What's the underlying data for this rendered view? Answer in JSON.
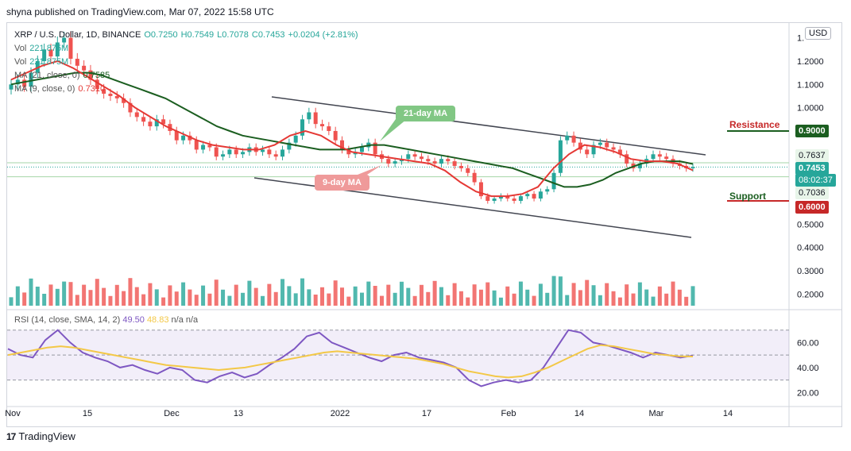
{
  "publisher": "shyna published on TradingView.com, Mar 07, 2022 15:58 UTC",
  "legend": {
    "symbol": "XRP / U.S. Dollar, 1D, BINANCE",
    "open": "O0.7250",
    "high": "H0.7549",
    "low": "L0.7078",
    "close": "C0.7453",
    "change": "+0.0204 (+2.81%)",
    "vol_label": "Vol",
    "vol_value": "221.875M",
    "vol_value2": "221.875M",
    "ma21": "MA (21, close, 0)",
    "ma21_value": "0.7585",
    "ma9": "MA (9, close, 0)",
    "ma9_value": "0.7310"
  },
  "currency_button": "USD",
  "price_axis": {
    "ticks": [
      "1.3000",
      "1.2000",
      "1.1000",
      "1.0000",
      "0.9000",
      "0.7637",
      "0.7453",
      "08:02:37",
      "0.7036",
      "0.6000",
      "0.5000",
      "0.4000",
      "0.3000",
      "0.2000"
    ],
    "top_tick": "1."
  },
  "labels": {
    "resistance": "Resistance",
    "resistance_value": "0.9000",
    "support": "Support",
    "support_value": "0.6000",
    "ma21_callout": "21-day MA",
    "ma9_callout": "9-day MA",
    "current_price": "0.7453",
    "countdown": "08:02:37",
    "high_marker": "0.7637",
    "low_marker": "0.7036"
  },
  "rsi": {
    "legend": "RSI (14, close, SMA, 14, 2)",
    "rsi_value": "49.50",
    "sma_value": "48.83",
    "extra": "n/a  n/a",
    "ticks": [
      "60.00",
      "40.00",
      "20.00"
    ]
  },
  "time_axis": [
    "Nov",
    "15",
    "Dec",
    "13",
    "2022",
    "17",
    "Feb",
    "14",
    "Mar",
    "14"
  ],
  "footer": {
    "brand": "TradingView",
    "logo_glyph": "17"
  },
  "colors": {
    "up": "#26a69a",
    "down": "#ef5350",
    "ma21": "#1b5e20",
    "ma9": "#e53935",
    "rsi": "#7e57c2",
    "rsi_sma": "#f3c847",
    "resistance": "#c62828",
    "support": "#c62828",
    "resistance_line": "#1b5e20"
  },
  "chart_data": {
    "type": "line",
    "candles_close": [
      1.1,
      1.12,
      1.09,
      1.15,
      1.2,
      1.25,
      1.22,
      1.28,
      1.3,
      1.21,
      1.18,
      1.16,
      1.12,
      1.08,
      1.06,
      1.05,
      1.04,
      1.02,
      0.98,
      0.96,
      0.94,
      0.92,
      0.95,
      0.93,
      0.9,
      0.86,
      0.88,
      0.86,
      0.82,
      0.84,
      0.83,
      0.79,
      0.8,
      0.82,
      0.8,
      0.81,
      0.83,
      0.81,
      0.82,
      0.8,
      0.79,
      0.82,
      0.85,
      0.88,
      0.95,
      0.98,
      0.93,
      0.92,
      0.9,
      0.86,
      0.82,
      0.8,
      0.81,
      0.83,
      0.85,
      0.8,
      0.78,
      0.76,
      0.77,
      0.78,
      0.8,
      0.79,
      0.78,
      0.77,
      0.76,
      0.78,
      0.77,
      0.75,
      0.74,
      0.72,
      0.68,
      0.62,
      0.6,
      0.61,
      0.62,
      0.61,
      0.6,
      0.62,
      0.63,
      0.61,
      0.64,
      0.65,
      0.72,
      0.86,
      0.88,
      0.85,
      0.82,
      0.8,
      0.84,
      0.85,
      0.83,
      0.82,
      0.8,
      0.76,
      0.74,
      0.76,
      0.78,
      0.8,
      0.79,
      0.78,
      0.76,
      0.75,
      0.74,
      0.7453
    ],
    "ma21": [
      1.1,
      1.11,
      1.12,
      1.13,
      1.14,
      1.15,
      1.15,
      1.14,
      1.12,
      1.1,
      1.08,
      1.06,
      1.04,
      1.01,
      0.98,
      0.95,
      0.92,
      0.9,
      0.88,
      0.87,
      0.86,
      0.85,
      0.84,
      0.83,
      0.82,
      0.82,
      0.82,
      0.83,
      0.84,
      0.84,
      0.83,
      0.82,
      0.81,
      0.8,
      0.79,
      0.78,
      0.77,
      0.76,
      0.75,
      0.74,
      0.72,
      0.7,
      0.68,
      0.66,
      0.66,
      0.67,
      0.69,
      0.72,
      0.74,
      0.76,
      0.77,
      0.77,
      0.77,
      0.7585
    ],
    "ma9": [
      1.12,
      1.15,
      1.18,
      1.2,
      1.17,
      1.13,
      1.09,
      1.05,
      1.0,
      0.96,
      0.92,
      0.89,
      0.86,
      0.84,
      0.83,
      0.82,
      0.82,
      0.84,
      0.88,
      0.9,
      0.88,
      0.84,
      0.81,
      0.8,
      0.79,
      0.78,
      0.77,
      0.76,
      0.73,
      0.68,
      0.64,
      0.62,
      0.62,
      0.63,
      0.66,
      0.74,
      0.8,
      0.84,
      0.83,
      0.81,
      0.78,
      0.77,
      0.77,
      0.76,
      0.731
    ],
    "rsi": [
      55,
      50,
      48,
      62,
      70,
      60,
      52,
      48,
      45,
      40,
      42,
      38,
      35,
      40,
      38,
      30,
      28,
      33,
      36,
      32,
      35,
      42,
      48,
      55,
      65,
      68,
      60,
      56,
      52,
      48,
      45,
      50,
      52,
      48,
      46,
      44,
      40,
      30,
      25,
      28,
      30,
      28,
      30,
      40,
      55,
      70,
      68,
      60,
      58,
      55,
      52,
      48,
      52,
      50,
      48,
      49.5
    ],
    "rsi_sma": [
      50,
      52,
      54,
      56,
      57,
      56,
      54,
      52,
      50,
      48,
      46,
      44,
      42,
      41,
      40,
      39,
      38,
      39,
      40,
      42,
      44,
      46,
      48,
      50,
      52,
      53,
      52,
      51,
      50,
      49,
      48,
      47,
      45,
      43,
      40,
      37,
      35,
      33,
      32,
      33,
      36,
      40,
      45,
      50,
      55,
      58,
      57,
      55,
      53,
      51,
      50,
      49,
      48.83
    ]
  }
}
